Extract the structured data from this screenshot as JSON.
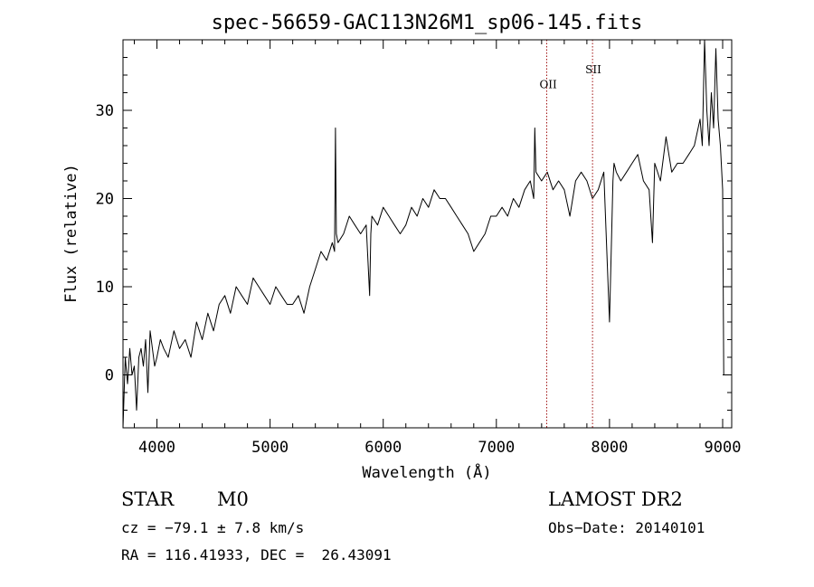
{
  "chart_data": {
    "type": "line",
    "title": "spec-56659-GAC113N26M1_sp06-145.fits",
    "xlabel": "Wavelength (Å)",
    "ylabel": "Flux (relative)",
    "xlim": [
      3700,
      9080
    ],
    "ylim": [
      -6,
      38
    ],
    "xticks": [
      4000,
      5000,
      6000,
      7000,
      8000,
      9000
    ],
    "yticks": [
      0,
      10,
      20,
      30
    ],
    "grid": false,
    "series": [
      {
        "color": "#000000",
        "x": [
          3700,
          3720,
          3740,
          3760,
          3780,
          3800,
          3820,
          3840,
          3860,
          3880,
          3900,
          3920,
          3940,
          3960,
          3980,
          4000,
          4030,
          4060,
          4100,
          4150,
          4200,
          4250,
          4300,
          4350,
          4400,
          4450,
          4500,
          4550,
          4600,
          4650,
          4700,
          4750,
          4800,
          4850,
          4900,
          4950,
          5000,
          5050,
          5100,
          5150,
          5200,
          5250,
          5300,
          5350,
          5400,
          5450,
          5500,
          5550,
          5570,
          5578,
          5586,
          5600,
          5650,
          5700,
          5750,
          5800,
          5850,
          5880,
          5890,
          5900,
          5950,
          6000,
          6050,
          6100,
          6150,
          6200,
          6250,
          6300,
          6350,
          6400,
          6450,
          6500,
          6550,
          6600,
          6650,
          6700,
          6750,
          6800,
          6850,
          6900,
          6950,
          7000,
          7050,
          7100,
          7150,
          7200,
          7250,
          7300,
          7330,
          7340,
          7350,
          7400,
          7450,
          7500,
          7550,
          7600,
          7650,
          7700,
          7750,
          7800,
          7850,
          7900,
          7950,
          8000,
          8030,
          8040,
          8060,
          8100,
          8150,
          8200,
          8250,
          8300,
          8350,
          8380,
          8400,
          8450,
          8500,
          8550,
          8600,
          8650,
          8700,
          8750,
          8800,
          8820,
          8840,
          8860,
          8880,
          8900,
          8920,
          8940,
          8960,
          8980,
          9000,
          9010
        ],
        "y": [
          -6,
          2,
          -1,
          3,
          0,
          1,
          -4,
          2,
          3,
          1,
          4,
          -2,
          5,
          3,
          1,
          2,
          4,
          3,
          2,
          5,
          3,
          4,
          2,
          6,
          4,
          7,
          5,
          8,
          9,
          7,
          10,
          9,
          8,
          11,
          10,
          9,
          8,
          10,
          9,
          8,
          8,
          9,
          7,
          10,
          12,
          14,
          13,
          15,
          14,
          28,
          16,
          15,
          16,
          18,
          17,
          16,
          17,
          9,
          16,
          18,
          17,
          19,
          18,
          17,
          16,
          17,
          19,
          18,
          20,
          19,
          21,
          20,
          20,
          19,
          18,
          17,
          16,
          14,
          15,
          16,
          18,
          18,
          19,
          18,
          20,
          19,
          21,
          22,
          20,
          28,
          23,
          22,
          23,
          21,
          22,
          21,
          18,
          22,
          23,
          22,
          20,
          21,
          23,
          6,
          22,
          24,
          23,
          22,
          23,
          24,
          25,
          22,
          21,
          15,
          24,
          22,
          27,
          23,
          24,
          24,
          25,
          26,
          29,
          26,
          38,
          30,
          26,
          32,
          28,
          37,
          29,
          26,
          21,
          0
        ]
      }
    ],
    "annotations": [
      {
        "label": "OII",
        "x": 7445,
        "y": 32.5,
        "color": "#a01010",
        "style": "dotted"
      },
      {
        "label": "SII",
        "x": 7850,
        "y": 34.2,
        "color": "#a01010",
        "style": "dotted"
      }
    ]
  },
  "info": {
    "object_class": "STAR",
    "subclass": "M0",
    "survey": "LAMOST DR2",
    "cz": "cz = −79.1 ± 7.8 km/s",
    "obs_date": "Obs−Date: 20140101",
    "coords": "RA = 116.41933, DEC =  26.43091"
  }
}
